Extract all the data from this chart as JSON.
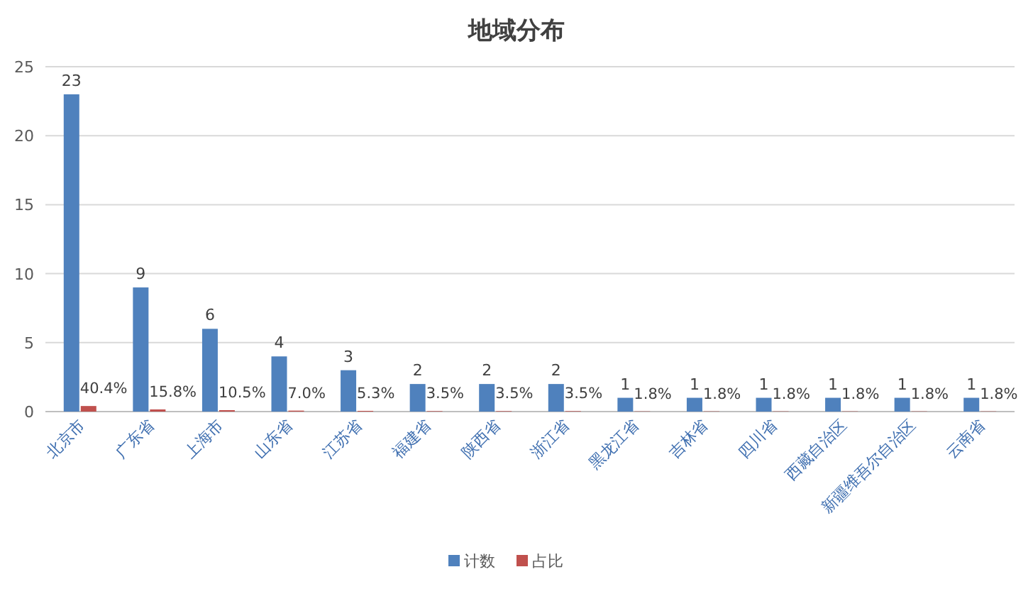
{
  "chart_data": {
    "type": "bar",
    "title": "地域分布",
    "categories": [
      "北京市",
      "广东省",
      "上海市",
      "山东省",
      "江苏省",
      "福建省",
      "陕西省",
      "浙江省",
      "黑龙江省",
      "吉林省",
      "四川省",
      "西藏自治区",
      "新疆维吾尔自治区",
      "云南省"
    ],
    "series": [
      {
        "name": "计数",
        "color": "#4f81bd",
        "values": [
          23,
          9,
          6,
          4,
          3,
          2,
          2,
          2,
          1,
          1,
          1,
          1,
          1,
          1
        ],
        "value_labels": [
          "23",
          "9",
          "6",
          "4",
          "3",
          "2",
          "2",
          "2",
          "1",
          "1",
          "1",
          "1",
          "1",
          "1"
        ]
      },
      {
        "name": "占比",
        "color": "#c0504d",
        "values": [
          0.404,
          0.158,
          0.105,
          0.07,
          0.053,
          0.035,
          0.035,
          0.035,
          0.018,
          0.018,
          0.018,
          0.018,
          0.018,
          0.018
        ],
        "value_labels": [
          "40.4%",
          "15.8%",
          "10.5%",
          "7.0%",
          "5.3%",
          "3.5%",
          "3.5%",
          "3.5%",
          "1.8%",
          "1.8%",
          "1.8%",
          "1.8%",
          "1.8%",
          "1.8%"
        ]
      }
    ],
    "ylim": [
      0,
      25
    ],
    "yticks": [
      0,
      5,
      10,
      15,
      20,
      25
    ],
    "grid": "y",
    "legend": "bottom"
  }
}
